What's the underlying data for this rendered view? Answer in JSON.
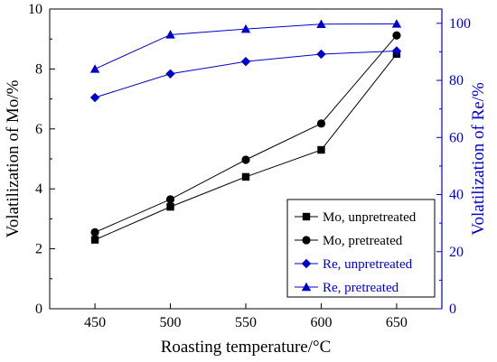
{
  "chart_data": {
    "type": "line",
    "xlabel": "Roasting temperature/°C",
    "ylabel_left": "Volatilization of Mo/%",
    "ylabel_right": "Volatilization of Re/%",
    "x": [
      450,
      500,
      550,
      600,
      650
    ],
    "xlim": [
      420,
      680
    ],
    "ylim_left": [
      0,
      10
    ],
    "ylim_right": [
      0,
      105
    ],
    "x_ticks": [
      "450",
      "500",
      "550",
      "600",
      "650"
    ],
    "y_left_ticks": [
      "0",
      "2",
      "4",
      "6",
      "8",
      "10"
    ],
    "y_right_ticks": [
      "0",
      "20",
      "40",
      "60",
      "80",
      "100"
    ],
    "right_axis_color": "#0000cc",
    "legend_position": "lower-right",
    "series": [
      {
        "name": "Mo, unpretreated",
        "axis": "left",
        "marker": "square",
        "color": "#000000",
        "values": [
          2.3,
          3.4,
          4.4,
          5.3,
          8.5
        ]
      },
      {
        "name": "Mo, pretreated",
        "axis": "left",
        "marker": "circle",
        "color": "#000000",
        "values": [
          2.55,
          3.65,
          4.97,
          6.18,
          9.12
        ]
      },
      {
        "name": "Re, unpretreated",
        "axis": "right",
        "marker": "diamond",
        "color": "#0000cc",
        "values": [
          74.0,
          82.3,
          86.6,
          89.2,
          90.3
        ]
      },
      {
        "name": "Re, pretreated",
        "axis": "right",
        "marker": "triangle",
        "color": "#0000cc",
        "values": [
          84.0,
          96.0,
          98.0,
          99.7,
          99.8
        ]
      }
    ]
  }
}
